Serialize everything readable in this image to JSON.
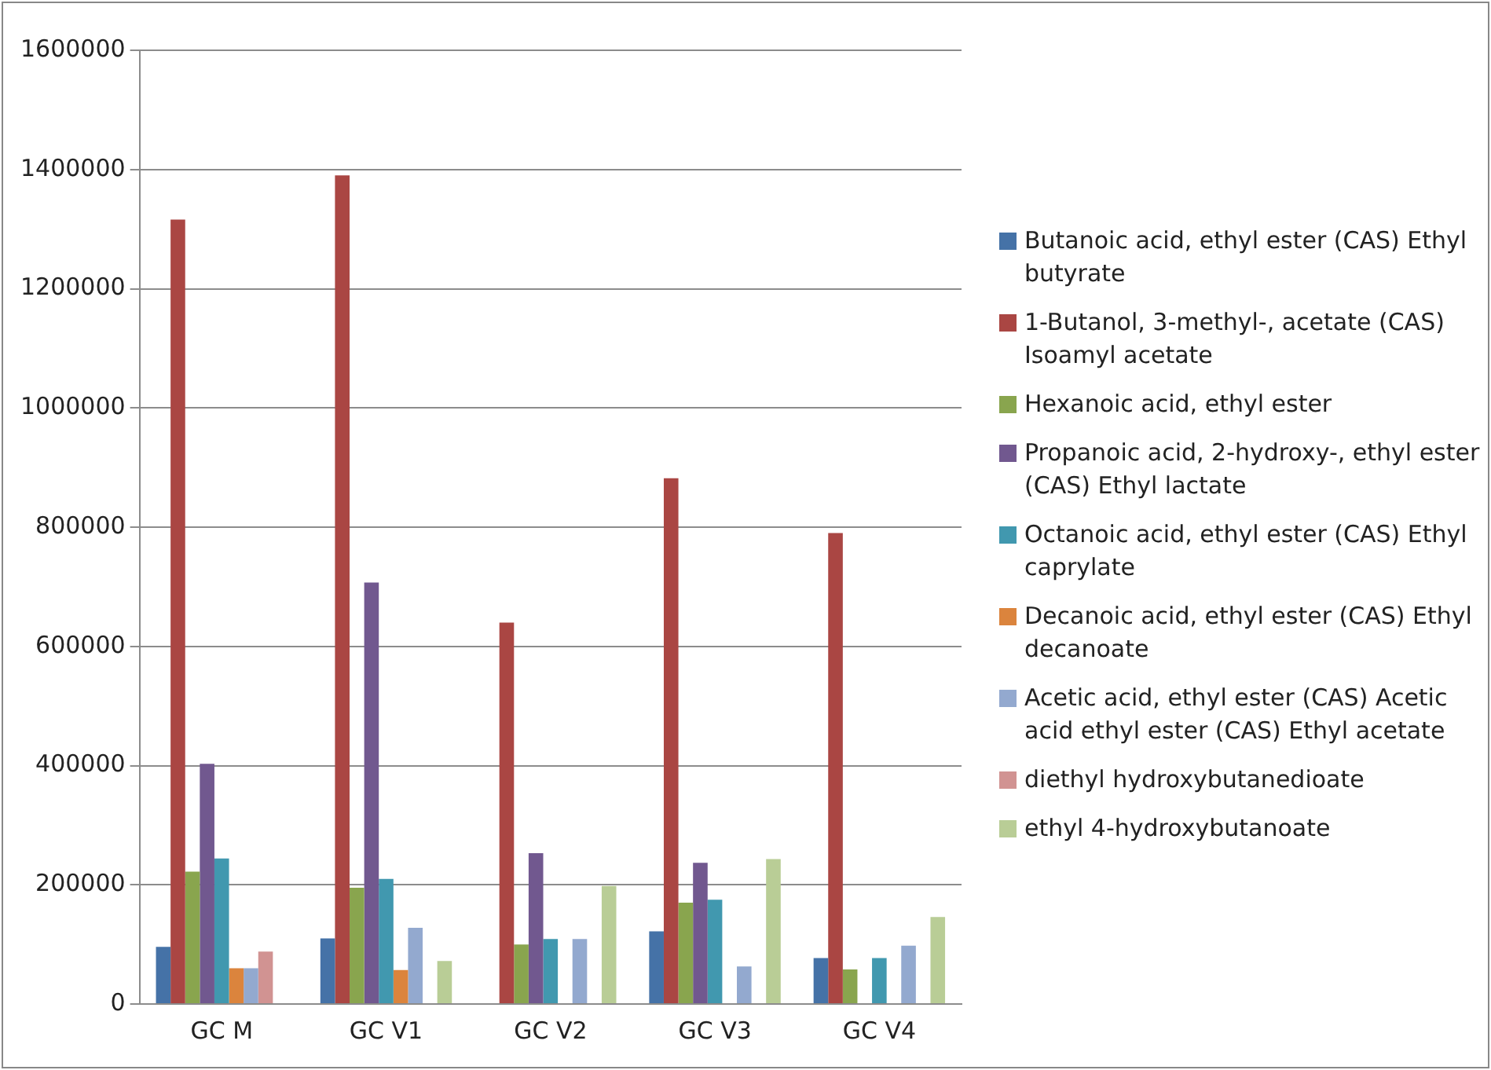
{
  "chart_data": {
    "type": "bar",
    "categories": [
      "GC M",
      "GC V1",
      "GC V2",
      "GC V3",
      "GC V4"
    ],
    "ylim": [
      0,
      1600000
    ],
    "yticks": [
      0,
      200000,
      400000,
      600000,
      800000,
      1000000,
      1200000,
      1400000,
      1600000
    ],
    "grid": "y",
    "legend": "right",
    "series": [
      {
        "name": "Butanoic acid, ethyl ester (CAS) Ethyl butyrate",
        "color": "#4572a7",
        "values": [
          96000,
          110000,
          null,
          122000,
          77000
        ]
      },
      {
        "name": "1-Butanol, 3-methyl-, acetate (CAS) Isoamyl acetate",
        "color": "#aa4643",
        "values": [
          1316000,
          1390000,
          640000,
          882000,
          790000
        ]
      },
      {
        "name": "Hexanoic acid, ethyl ester",
        "color": "#89a54e",
        "values": [
          222000,
          195000,
          100000,
          170000,
          58000
        ]
      },
      {
        "name": "Propanoic acid, 2-hydroxy-, ethyl ester (CAS) Ethyl lactate",
        "color": "#71588f",
        "values": [
          403000,
          707000,
          253000,
          237000,
          null
        ]
      },
      {
        "name": "Octanoic acid, ethyl ester (CAS) Ethyl caprylate",
        "color": "#4198af",
        "values": [
          244000,
          210000,
          109000,
          175000,
          77000
        ]
      },
      {
        "name": "Decanoic acid, ethyl ester (CAS) Ethyl decanoate",
        "color": "#db843d",
        "values": [
          60000,
          57000,
          null,
          null,
          null
        ]
      },
      {
        "name": "Acetic acid, ethyl ester (CAS) Acetic acid ethyl ester (CAS) Ethyl acetate",
        "color": "#93a9cf",
        "values": [
          60000,
          128000,
          109000,
          63000,
          98000
        ]
      },
      {
        "name": "diethyl hydroxybutanedioate",
        "color": "#d19392",
        "values": [
          88000,
          null,
          null,
          null,
          null
        ]
      },
      {
        "name": "ethyl 4-hydroxybutanoate",
        "color": "#b9cd96",
        "values": [
          null,
          72000,
          198000,
          243000,
          146000
        ]
      }
    ]
  }
}
